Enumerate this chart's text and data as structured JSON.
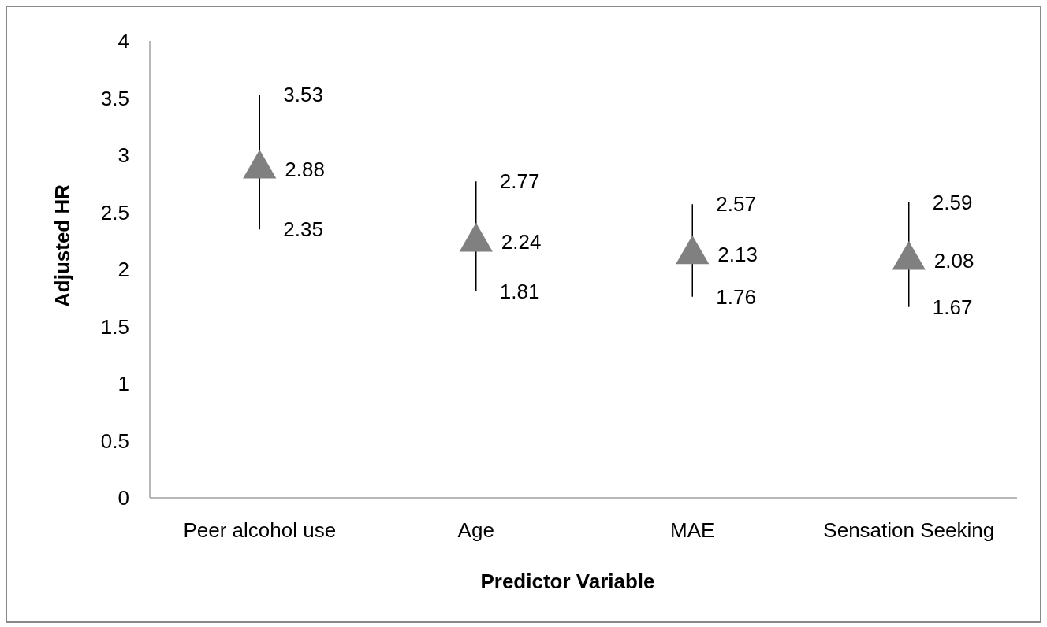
{
  "chart_data": {
    "type": "scatter",
    "xlabel": "Predictor Variable",
    "ylabel": "Adjusted HR",
    "categories": [
      "Peer alcohol use",
      "Age",
      "MAE",
      "Sensation Seeking"
    ],
    "values": [
      2.88,
      2.24,
      2.13,
      2.08
    ],
    "errors": [
      [
        2.35,
        3.53
      ],
      [
        1.81,
        2.77
      ],
      [
        1.76,
        2.57
      ],
      [
        1.67,
        2.59
      ]
    ],
    "color": "#808080",
    "marker": "triangle",
    "data_labels": true,
    "annotations": [
      {
        "text": "3.53",
        "x": "Peer alcohol use",
        "y": 3.53
      },
      {
        "text": "2.35",
        "x": "Peer alcohol use",
        "y": 2.35
      },
      {
        "text": "2.77",
        "x": "Age",
        "y": 2.77
      },
      {
        "text": "1.81",
        "x": "Age",
        "y": 1.81
      },
      {
        "text": "2.57",
        "x": "MAE",
        "y": 2.57
      },
      {
        "text": "1.76",
        "x": "MAE",
        "y": 1.76
      },
      {
        "text": "2.59",
        "x": "Sensation Seeking",
        "y": 2.59
      },
      {
        "text": "1.67",
        "x": "Sensation Seeking",
        "y": 1.67
      }
    ],
    "ylim": [
      0,
      4
    ],
    "yticks": [
      0,
      0.5,
      1,
      1.5,
      2,
      2.5,
      3,
      3.5,
      4
    ],
    "grid": false
  }
}
